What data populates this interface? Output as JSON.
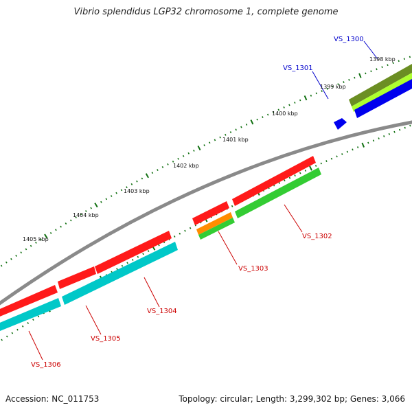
{
  "header": {
    "title": "Vibrio splendidus LGP32 chromosome 1, complete genome"
  },
  "footer": {
    "accession": "Accession: NC_011753",
    "summary": "Topology: circular; Length: 3,299,302 bp; Genes: 3,066"
  },
  "colors": {
    "backbone": "#8a8a8a",
    "tick": "#0f6f0f",
    "red": "#ff1a1a",
    "cyan": "#00c8c8",
    "green": "#33cc33",
    "orange": "#ff8c00",
    "olive": "#6b8e23",
    "lime": "#adff2f",
    "blue": "#0000ee",
    "label_red": "#cc0000",
    "label_blue": "#0000cc"
  },
  "ticks": [
    {
      "label": "1398 kbp"
    },
    {
      "label": "1399 kbp"
    },
    {
      "label": "1400 kbp"
    },
    {
      "label": "1401 kbp"
    },
    {
      "label": "1402 kbp"
    },
    {
      "label": "1403 kbp"
    },
    {
      "label": "1404 kbp"
    },
    {
      "label": "1405 kbp"
    }
  ],
  "genes": [
    {
      "label": "VS_1300",
      "color_key": "label_blue"
    },
    {
      "label": "VS_1301",
      "color_key": "label_blue"
    },
    {
      "label": "VS_1302",
      "color_key": "label_red"
    },
    {
      "label": "VS_1303",
      "color_key": "label_red"
    },
    {
      "label": "VS_1304",
      "color_key": "label_red"
    },
    {
      "label": "VS_1305",
      "color_key": "label_red"
    },
    {
      "label": "VS_1306",
      "color_key": "label_red"
    }
  ]
}
